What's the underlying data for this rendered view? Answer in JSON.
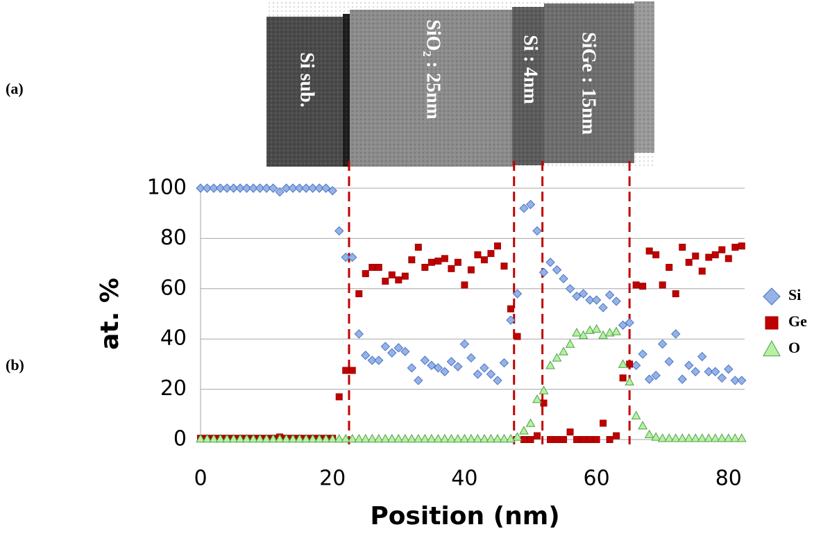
{
  "chart_data": {
    "type": "scatter",
    "panel_labels": [
      "(a)",
      "(b)"
    ],
    "image_labels": [
      "Si sub.",
      "SiO₂ : 25nm",
      "Si : 4nm",
      "SiGe : 15nm"
    ],
    "x_label": "Position (nm)",
    "y_label": "at. %",
    "xlim": [
      0,
      82
    ],
    "ylim": [
      0,
      100
    ],
    "xticks": [
      0,
      20,
      40,
      60,
      80
    ],
    "yticks": [
      0,
      20,
      40,
      60,
      80,
      100
    ],
    "grid": true,
    "boundaries": [
      22.5,
      47.5,
      51.8,
      65
    ],
    "boundary_color": "#c00000",
    "legend": "right",
    "x": [
      0,
      1,
      2,
      3,
      4,
      5,
      6,
      7,
      8,
      9,
      10,
      11,
      12,
      13,
      14,
      15,
      16,
      17,
      18,
      19,
      20,
      21,
      22,
      23,
      24,
      25,
      26,
      27,
      28,
      29,
      30,
      31,
      32,
      33,
      34,
      35,
      36,
      37,
      38,
      39,
      40,
      41,
      42,
      43,
      44,
      45,
      46,
      47,
      48,
      49,
      50,
      51,
      52,
      53,
      54,
      55,
      56,
      57,
      58,
      59,
      60,
      61,
      62,
      63,
      64,
      65,
      66,
      67,
      68,
      69,
      70,
      71,
      72,
      73,
      74,
      75,
      76,
      77,
      78,
      79,
      80,
      81,
      82
    ],
    "series": [
      {
        "name": "Si",
        "color": "#95b3e6",
        "marker": "diamond",
        "values": [
          100,
          100,
          100,
          100,
          100,
          100,
          100,
          100,
          100,
          100,
          100,
          100,
          98.5,
          100,
          100,
          100,
          100,
          100,
          100,
          100,
          99,
          83,
          72.5,
          72.5,
          42,
          33.5,
          31.5,
          31.5,
          37,
          34.5,
          36.5,
          35,
          28.5,
          23.5,
          31.5,
          29.5,
          28.5,
          27,
          31,
          29,
          38,
          32.5,
          26,
          28.5,
          26,
          23.5,
          30.5,
          47.5,
          58,
          92,
          93.5,
          83,
          66.5,
          70.5,
          67.5,
          64,
          60,
          57,
          58,
          55.5,
          55.5,
          52.5,
          57.5,
          55,
          45.5,
          46.5,
          29.5,
          34,
          24,
          25.5,
          38,
          31,
          42,
          24,
          29.5,
          27,
          33,
          27,
          27,
          24.5,
          28,
          23.5,
          23.5
        ]
      },
      {
        "name": "Ge",
        "color": "#c00000",
        "marker": "square",
        "values": [
          0.5,
          0.5,
          0.5,
          0.5,
          0.5,
          0.5,
          0.5,
          0.5,
          0.5,
          0.5,
          0.5,
          0.5,
          1,
          0.5,
          0.5,
          0.5,
          0.5,
          0.5,
          0.5,
          0.5,
          0.5,
          17,
          27.5,
          27.5,
          58,
          66,
          68.5,
          68.5,
          63,
          65.5,
          63.5,
          65,
          71.5,
          76.5,
          68.5,
          70.5,
          71,
          72,
          68,
          70.5,
          61.5,
          67.5,
          73.5,
          71.5,
          74,
          77,
          69,
          52,
          41,
          0,
          0,
          1.5,
          14.5,
          0,
          0,
          0,
          3,
          0,
          0,
          0,
          0,
          6.5,
          0,
          1.5,
          24.5,
          30,
          61.5,
          61,
          75,
          73.5,
          61.5,
          68.5,
          58,
          76.5,
          70.5,
          73,
          67,
          72.5,
          73.5,
          75.5,
          72,
          76.5,
          77
        ]
      },
      {
        "name": "O",
        "color": "#b6f0a0",
        "marker": "triangle",
        "values": [
          0.3,
          0.3,
          0.3,
          0.3,
          0.3,
          0.3,
          0.3,
          0.3,
          0.3,
          0.3,
          0.3,
          0.3,
          0.3,
          0.3,
          0.3,
          0.3,
          0.3,
          0.3,
          0.3,
          0.3,
          0.3,
          0.3,
          0.3,
          0.3,
          0.3,
          0.3,
          0.3,
          0.3,
          0.3,
          0.3,
          0.3,
          0.3,
          0.3,
          0.3,
          0.3,
          0.3,
          0.3,
          0.3,
          0.3,
          0.3,
          0.3,
          0.3,
          0.3,
          0.3,
          0.3,
          0.3,
          0.3,
          0.3,
          1,
          3.5,
          6.5,
          16,
          19.5,
          29.5,
          32.5,
          35,
          38,
          42.5,
          41.5,
          43.5,
          44,
          41.5,
          42.5,
          43,
          30,
          23,
          9.5,
          5.5,
          2,
          1,
          0.5,
          0.5,
          0.5,
          0.5,
          0.5,
          0.5,
          0.5,
          0.5,
          0.5,
          0.5,
          0.5,
          0.5,
          0.5
        ]
      }
    ]
  }
}
